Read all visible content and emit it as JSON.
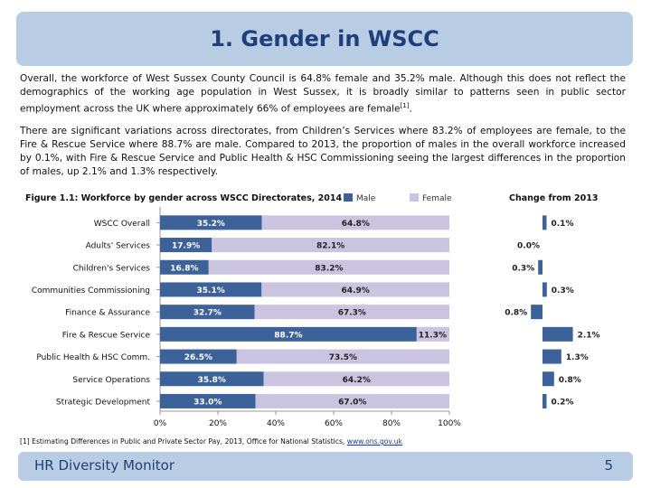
{
  "title": "1. Gender in WSCC",
  "paragraph1": "Overall, the workforce of West Sussex County Council is 64.8% female and 35.2% male. Although this does not reflect the demographics of the working age population in West Sussex, it is broadly similar to patterns seen in public sector employment across the UK where approximately 66% of employees are female",
  "paragraph1_ref": "[1]",
  "paragraph1_end": ".",
  "paragraph2": "There are significant variations across directorates, from Children’s Services where 83.2% of employees are female, to the Fire & Rescue Service where 88.7% are male. Compared to 2013, the proportion of males in the overall workforce increased by 0.1%, with Fire & Rescue Service and Public Health & HSC Commissioning seeing the largest differences in the proportion of males, up 2.1% and 1.3% respectively.",
  "footnote": {
    "text": "[1] Estimating Differences in Public and Private Sector Pay, 2013, Office for National Statistics, ",
    "link": "www.ons.gov.uk"
  },
  "footer": {
    "left": "HR Diversity Monitor",
    "page": "5"
  },
  "colors": {
    "male": "#3d6199",
    "female": "#cbc4e0",
    "change": "#3d6199",
    "accent": "#1f3f7a",
    "band": "#b8cce4"
  },
  "chart_data": [
    {
      "type": "bar",
      "orientation": "horizontal",
      "stacked": true,
      "title": "Figure 1.1: Workforce by gender across WSCC Directorates, 2014",
      "categories": [
        "WSCC Overall",
        "Adults' Services",
        "Children's Services",
        "Communities Commissioning",
        "Finance & Assurance",
        "Fire & Rescue Service",
        "Public Health & HSC Comm.",
        "Service Operations",
        "Strategic Development"
      ],
      "series": [
        {
          "name": "Male",
          "values": [
            35.2,
            17.9,
            16.8,
            35.1,
            32.7,
            88.7,
            26.5,
            35.8,
            33.0
          ],
          "labels": [
            "35.2%",
            "17.9%",
            "16.8%",
            "35.1%",
            "32.7%",
            "88.7%",
            "26.5%",
            "35.8%",
            "33.0%"
          ]
        },
        {
          "name": "Female",
          "values": [
            64.8,
            82.1,
            83.2,
            64.9,
            67.3,
            11.3,
            73.5,
            64.2,
            67.0
          ],
          "labels": [
            "64.8%",
            "82.1%",
            "83.2%",
            "64.9%",
            "67.3%",
            "11.3%",
            "73.5%",
            "64.2%",
            "67.0%"
          ]
        }
      ],
      "xlim": [
        0,
        100
      ],
      "xticks": [
        "0%",
        "20%",
        "40%",
        "60%",
        "80%",
        "100%"
      ],
      "legend": "top"
    },
    {
      "type": "bar",
      "orientation": "horizontal",
      "title": "Change from 2013",
      "categories": [
        "WSCC Overall",
        "Adults' Services",
        "Children's Services",
        "Communities Commissioning",
        "Finance & Assurance",
        "Fire & Rescue Service",
        "Public Health & HSC Comm.",
        "Service Operations",
        "Strategic Development"
      ],
      "values": [
        0.1,
        0.0,
        -0.3,
        0.3,
        -0.8,
        2.1,
        1.3,
        0.8,
        0.2
      ],
      "labels": [
        "0.1%",
        "0.0%",
        "0.3%",
        "0.3%",
        "0.8%",
        "2.1%",
        "1.3%",
        "0.8%",
        "0.2%"
      ]
    }
  ]
}
